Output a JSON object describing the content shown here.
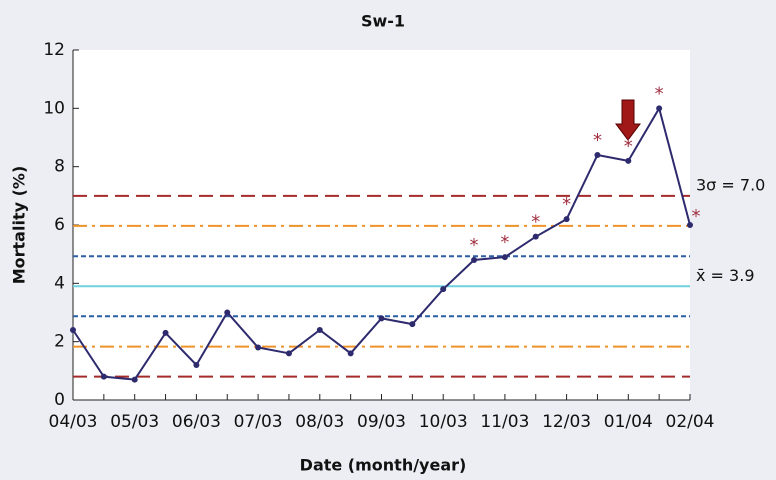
{
  "chart_data": {
    "type": "line",
    "title": "Sw-1",
    "x_label": "Date (month/year)",
    "y_label": "Mortality (%)",
    "categories": [
      "04/03",
      null,
      "05/03",
      null,
      "06/03",
      null,
      "07/03",
      null,
      "08/03",
      null,
      "09/03",
      null,
      "10/03",
      null,
      "11/03",
      null,
      "12/03",
      null,
      "01/04",
      null,
      "02/04"
    ],
    "series": [
      {
        "name": "Mortality",
        "color": "#2e2a6e",
        "values": [
          2.4,
          0.8,
          0.7,
          2.3,
          1.2,
          3.0,
          1.8,
          1.6,
          2.4,
          1.6,
          2.8,
          2.6,
          3.8,
          4.8,
          4.9,
          5.6,
          6.2,
          8.4,
          8.2,
          10.0,
          6.0
        ]
      }
    ],
    "flagged": [
      false,
      false,
      false,
      false,
      false,
      false,
      false,
      false,
      false,
      false,
      false,
      false,
      false,
      true,
      true,
      true,
      true,
      true,
      true,
      true,
      true
    ],
    "flag_marker": "*",
    "flag_color": "#a03040",
    "control_lines": [
      {
        "value": 7.0,
        "color": "#a52a2a",
        "style": "dashed"
      },
      {
        "value": 5.97,
        "color": "#f0922a",
        "style": "dashdot"
      },
      {
        "value": 4.93,
        "color": "#2a5fa5",
        "style": "dotted"
      },
      {
        "value": 3.9,
        "color": "#6fd0e0",
        "style": "solid"
      },
      {
        "value": 2.87,
        "color": "#2a5fa5",
        "style": "dotted"
      },
      {
        "value": 1.83,
        "color": "#f0922a",
        "style": "dashdot"
      },
      {
        "value": 0.8,
        "color": "#a52a2a",
        "style": "dashed"
      }
    ],
    "annotations": [
      {
        "text": "3σ = 7.0",
        "y": 7.0
      },
      {
        "text": "x̄ = 3.9",
        "y": 3.9
      }
    ],
    "ylim": [
      0,
      12
    ],
    "yticks": [
      0,
      2,
      4,
      6,
      8,
      10,
      12
    ]
  }
}
